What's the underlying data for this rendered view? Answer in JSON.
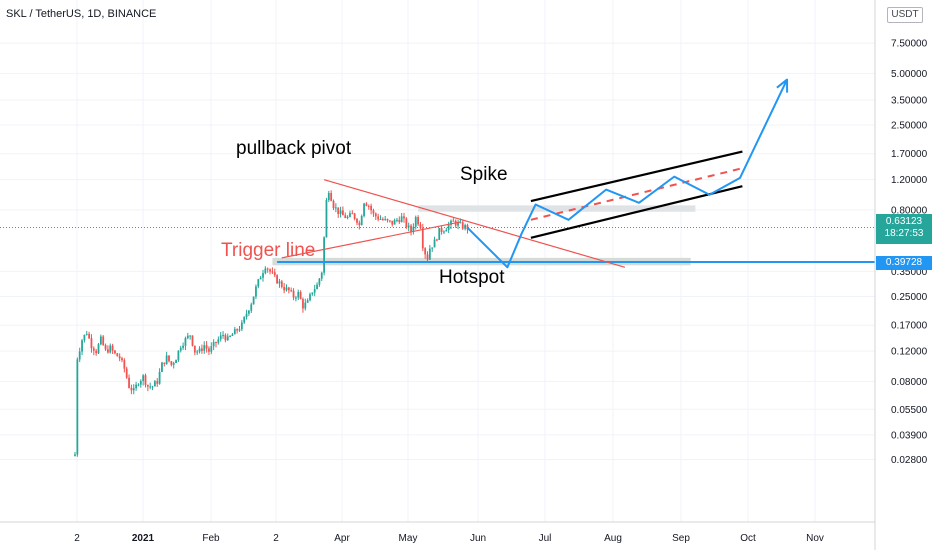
{
  "header": {
    "title": "SKL / TetherUS, 1D, BINANCE",
    "currency": "USDT"
  },
  "price_scale": {
    "current_price": "0.63123",
    "countdown": "18:27:53",
    "hotspot_level": "0.39728",
    "current_color": "#26a69a",
    "hotspot_color": "#2196f3"
  },
  "annotations": {
    "pullback": "pullback pivot",
    "trigger": "Trigger line",
    "spike": "Spike",
    "hotspot": "Hotspot"
  },
  "chart_data": {
    "type": "candlestick",
    "symbol": "SKL / TetherUS",
    "interval": "1D",
    "exchange": "BINANCE",
    "y_scale": "log",
    "ylim": [
      0.024,
      7.5
    ],
    "y_ticks": [
      "7.50000",
      "5.00000",
      "3.50000",
      "2.50000",
      "1.70000",
      "1.20000",
      "0.80000",
      "0.35000",
      "0.25000",
      "0.17000",
      "0.12000",
      "0.08000",
      "0.05500",
      "0.03900",
      "0.02800"
    ],
    "x_ticks": [
      "2",
      "2021",
      "Feb",
      "2",
      "Apr",
      "May",
      "Jun",
      "Jul",
      "Aug",
      "Sep",
      "Oct",
      "Nov"
    ],
    "colors": {
      "up": "#26a69a",
      "down": "#ef5350"
    },
    "price_path": [
      [
        0,
        0.03
      ],
      [
        1,
        0.11
      ],
      [
        3,
        0.14
      ],
      [
        5,
        0.155
      ],
      [
        7,
        0.13
      ],
      [
        9,
        0.12
      ],
      [
        11,
        0.14
      ],
      [
        13,
        0.12
      ],
      [
        15,
        0.125
      ],
      [
        17,
        0.115
      ],
      [
        19,
        0.11
      ],
      [
        21,
        0.095
      ],
      [
        23,
        0.075
      ],
      [
        25,
        0.07
      ],
      [
        27,
        0.08
      ],
      [
        29,
        0.085
      ],
      [
        31,
        0.075
      ],
      [
        33,
        0.075
      ],
      [
        35,
        0.08
      ],
      [
        37,
        0.1
      ],
      [
        39,
        0.11
      ],
      [
        41,
        0.1
      ],
      [
        43,
        0.11
      ],
      [
        45,
        0.13
      ],
      [
        47,
        0.14
      ],
      [
        49,
        0.15
      ],
      [
        51,
        0.12
      ],
      [
        53,
        0.12
      ],
      [
        55,
        0.13
      ],
      [
        57,
        0.12
      ],
      [
        59,
        0.13
      ],
      [
        61,
        0.14
      ],
      [
        63,
        0.15
      ],
      [
        65,
        0.14
      ],
      [
        67,
        0.15
      ],
      [
        69,
        0.16
      ],
      [
        71,
        0.17
      ],
      [
        73,
        0.2
      ],
      [
        75,
        0.23
      ],
      [
        77,
        0.28
      ],
      [
        79,
        0.33
      ],
      [
        81,
        0.38
      ],
      [
        83,
        0.35
      ],
      [
        85,
        0.32
      ],
      [
        87,
        0.3
      ],
      [
        89,
        0.28
      ],
      [
        91,
        0.27
      ],
      [
        93,
        0.25
      ],
      [
        95,
        0.26
      ],
      [
        97,
        0.22
      ],
      [
        99,
        0.23
      ],
      [
        101,
        0.27
      ],
      [
        103,
        0.29
      ],
      [
        105,
        0.35
      ],
      [
        106,
        0.55
      ],
      [
        107,
        0.9
      ],
      [
        108,
        1.05
      ],
      [
        110,
        0.85
      ],
      [
        112,
        0.78
      ],
      [
        114,
        0.74
      ],
      [
        116,
        0.72
      ],
      [
        118,
        0.75
      ],
      [
        120,
        0.7
      ],
      [
        121,
        0.65
      ],
      [
        123,
        0.9
      ],
      [
        125,
        0.85
      ],
      [
        127,
        0.75
      ],
      [
        129,
        0.72
      ],
      [
        131,
        0.7
      ],
      [
        133,
        0.68
      ],
      [
        135,
        0.67
      ],
      [
        137,
        0.7
      ],
      [
        139,
        0.72
      ],
      [
        141,
        0.65
      ],
      [
        143,
        0.6
      ],
      [
        145,
        0.72
      ],
      [
        147,
        0.65
      ],
      [
        148,
        0.5
      ],
      [
        149,
        0.45
      ],
      [
        150,
        0.42
      ],
      [
        151,
        0.48
      ],
      [
        153,
        0.52
      ],
      [
        155,
        0.6
      ],
      [
        157,
        0.62
      ],
      [
        159,
        0.65
      ],
      [
        161,
        0.68
      ],
      [
        163,
        0.66
      ],
      [
        165,
        0.64
      ],
      [
        167,
        0.63
      ]
    ],
    "projection": {
      "path": [
        [
          167,
          0.63
        ],
        [
          184,
          0.37
        ],
        [
          190,
          0.58
        ],
        [
          196,
          0.86
        ],
        [
          210,
          0.7
        ],
        [
          226,
          1.05
        ],
        [
          240,
          0.88
        ],
        [
          255,
          1.25
        ],
        [
          270,
          0.98
        ],
        [
          283,
          1.23
        ],
        [
          303,
          4.6
        ]
      ],
      "color": "#2196f3"
    },
    "lines": {
      "trigger_line": {
        "from": [
          88,
          0.42
        ],
        "to": [
          164,
          0.68
        ],
        "color": "#ef5350"
      },
      "descending_resistance": {
        "from": [
          106,
          1.2
        ],
        "to": [
          234,
          0.37
        ],
        "color": "#ef5350"
      },
      "channel_upper": {
        "from": [
          194,
          0.9
        ],
        "to": [
          284,
          1.75
        ],
        "color": "#000000"
      },
      "channel_lower": {
        "from": [
          194,
          0.55
        ],
        "to": [
          284,
          1.1
        ],
        "color": "#000000"
      },
      "channel_mid": {
        "from": [
          194,
          0.7
        ],
        "to": [
          284,
          1.4
        ],
        "color": "#ef5350",
        "style": "dashed"
      },
      "hotspot_hline": {
        "level": 0.39728,
        "color": "#2196f3"
      }
    },
    "zones": [
      {
        "x": [
          84,
          262
        ],
        "y": [
          0.38,
          0.42
        ],
        "color": "#d5dcd8"
      },
      {
        "x": [
          146,
          264
        ],
        "y": [
          0.78,
          0.85
        ],
        "color": "#e0e3e6"
      }
    ]
  }
}
